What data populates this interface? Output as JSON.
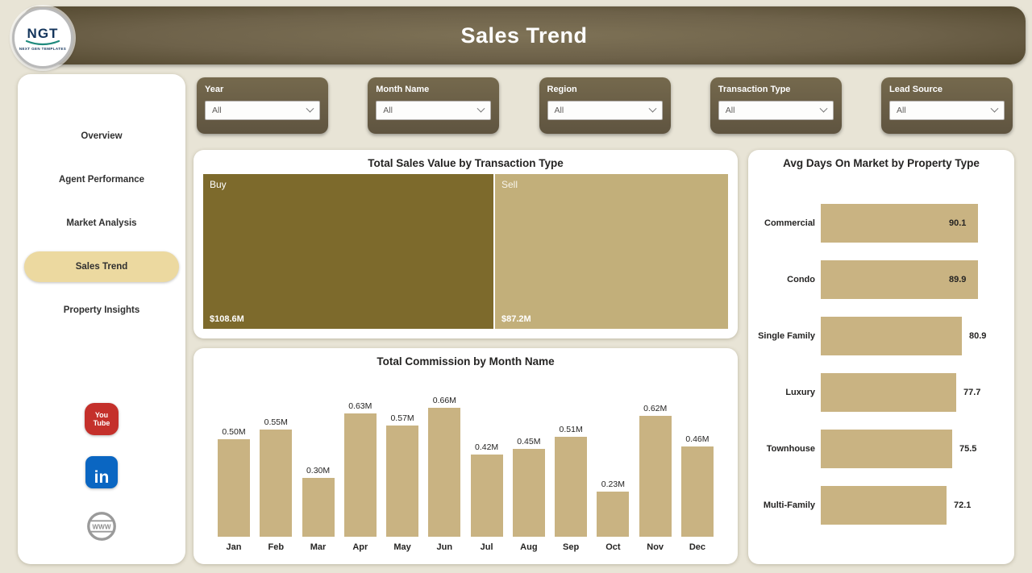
{
  "app": {
    "title": "Sales Trend",
    "logo_text": "NGT",
    "logo_sub": "NEXT GEN TEMPLATES"
  },
  "colors": {
    "header_olive": "#6e624a",
    "active_nav": "#ecd9a0",
    "slicer_bg": "#6a5f46",
    "bar_tan": "#c9b382",
    "treemap_buy": "#7d6a2c",
    "treemap_sell": "#c2af7a",
    "youtube_red": "#c4302b",
    "linkedin_blue": "#0a66c2"
  },
  "sidebar": {
    "items": [
      {
        "label": "Overview",
        "active": false
      },
      {
        "label": "Agent Performance",
        "active": false
      },
      {
        "label": "Market Analysis",
        "active": false
      },
      {
        "label": "Sales Trend",
        "active": true
      },
      {
        "label": "Property Insights",
        "active": false
      }
    ],
    "social": {
      "youtube_line1": "You",
      "youtube_line2": "Tube",
      "linkedin": "in",
      "globe": "WWW"
    }
  },
  "filters": [
    {
      "label": "Year",
      "value": "All"
    },
    {
      "label": "Month Name",
      "value": "All"
    },
    {
      "label": "Region",
      "value": "All"
    },
    {
      "label": "Transaction Type",
      "value": "All"
    },
    {
      "label": "Lead Source",
      "value": "All"
    }
  ],
  "chart_data": [
    {
      "type": "treemap",
      "title": "Total Sales Value by Transaction Type",
      "segments": [
        {
          "label": "Buy",
          "value": 108.6,
          "value_label": "$108.6M",
          "color": "#7d6a2c",
          "label_color": "#ffffff"
        },
        {
          "label": "Sell",
          "value": 87.2,
          "value_label": "$87.2M",
          "color": "#c2af7a",
          "label_color": "#f7f4ea"
        }
      ]
    },
    {
      "type": "bar",
      "title": "Total Commission by Month Name",
      "categories": [
        "Jan",
        "Feb",
        "Mar",
        "Apr",
        "May",
        "Jun",
        "Jul",
        "Aug",
        "Sep",
        "Oct",
        "Nov",
        "Dec"
      ],
      "values": [
        0.5,
        0.55,
        0.3,
        0.63,
        0.57,
        0.66,
        0.42,
        0.45,
        0.51,
        0.23,
        0.62,
        0.46
      ],
      "value_labels": [
        "0.50M",
        "0.55M",
        "0.30M",
        "0.63M",
        "0.57M",
        "0.66M",
        "0.42M",
        "0.45M",
        "0.51M",
        "0.23M",
        "0.62M",
        "0.46M"
      ],
      "ylim": [
        0,
        0.7
      ],
      "xlabel": "",
      "ylabel": ""
    },
    {
      "type": "bar-horizontal",
      "title": "Avg Days On Market by Property Type",
      "categories": [
        "Commercial",
        "Condo",
        "Single Family",
        "Luxury",
        "Townhouse",
        "Multi-Family"
      ],
      "values": [
        90.1,
        89.9,
        80.9,
        77.7,
        75.5,
        72.1
      ],
      "value_labels": [
        "90.1",
        "89.9",
        "80.9",
        "77.7",
        "75.5",
        "72.1"
      ],
      "xlim": [
        0,
        100
      ]
    }
  ]
}
